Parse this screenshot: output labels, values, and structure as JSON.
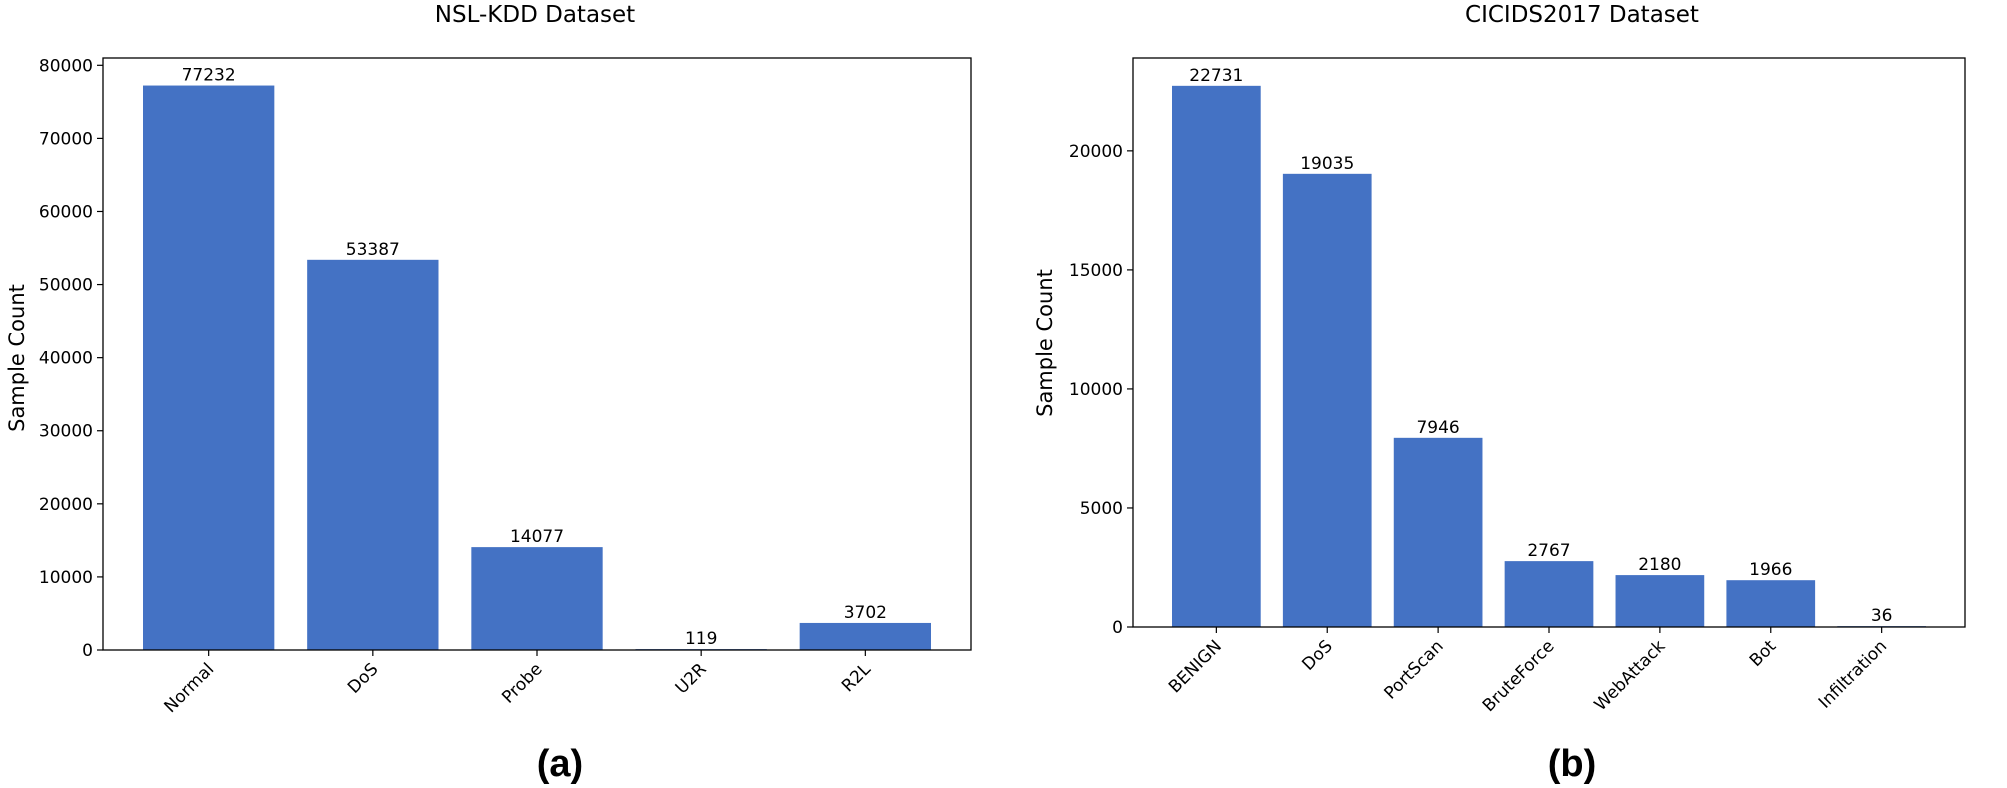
{
  "chart_data": [
    {
      "type": "bar",
      "title": "NSL-KDD Dataset",
      "panel_label": "(a)",
      "ylabel": "Sample Count",
      "xlabel": "",
      "categories": [
        "Normal",
        "DoS",
        "Probe",
        "U2R",
        "R2L"
      ],
      "values": [
        77232,
        53387,
        14077,
        119,
        3702
      ],
      "data_labels": [
        "77232",
        "53387",
        "14077",
        "119",
        "3702"
      ],
      "ylim": [
        0,
        81000
      ],
      "yticks": [
        0,
        10000,
        20000,
        30000,
        40000,
        50000,
        60000,
        70000,
        80000
      ],
      "ytick_labels": [
        "0",
        "10000",
        "20000",
        "30000",
        "40000",
        "50000",
        "60000",
        "70000",
        "80000"
      ],
      "grid": false,
      "bar_color": "#4472C4"
    },
    {
      "type": "bar",
      "title": "CICIDS2017 Dataset",
      "panel_label": "(b)",
      "ylabel": "Sample Count",
      "xlabel": "",
      "categories": [
        "BENIGN",
        "DoS",
        "PortScan",
        "BruteForce",
        "WebAttack",
        "Bot",
        "Infiltration"
      ],
      "values": [
        22731,
        19035,
        7946,
        2767,
        2180,
        1966,
        36
      ],
      "data_labels": [
        "22731",
        "19035",
        "7946",
        "2767",
        "2180",
        "1966",
        "36"
      ],
      "ylim": [
        0,
        23900
      ],
      "yticks": [
        0,
        5000,
        10000,
        15000,
        20000
      ],
      "ytick_labels": [
        "0",
        "5000",
        "10000",
        "15000",
        "20000"
      ],
      "grid": false,
      "bar_color": "#4472C4"
    }
  ]
}
